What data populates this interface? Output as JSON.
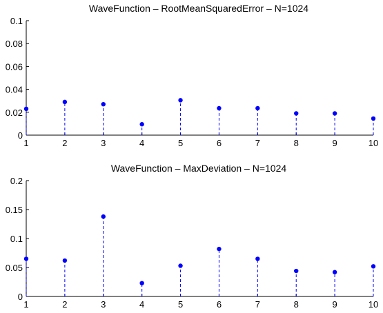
{
  "chart_data": [
    {
      "type": "scatter",
      "title": "WaveFunction – RootMeanSquaredError – N=1024",
      "xlabel": "",
      "ylabel": "",
      "xlim": [
        1,
        10
      ],
      "ylim": [
        0,
        0.1
      ],
      "x_ticks": [
        "1",
        "2",
        "3",
        "4",
        "5",
        "6",
        "7",
        "8",
        "9",
        "10"
      ],
      "y_ticks": [
        "0",
        "0.02",
        "0.04",
        "0.06",
        "0.08",
        "0.1"
      ],
      "x": [
        1,
        2,
        3,
        4,
        5,
        6,
        7,
        8,
        9,
        10
      ],
      "values": [
        0.023,
        0.029,
        0.027,
        0.0095,
        0.0305,
        0.0235,
        0.0235,
        0.019,
        0.019,
        0.0145
      ],
      "stems_dashed": true,
      "grid": false,
      "color": "#0000ff"
    },
    {
      "type": "scatter",
      "title": "WaveFunction – MaxDeviation – N=1024",
      "xlabel": "",
      "ylabel": "",
      "xlim": [
        1,
        10
      ],
      "ylim": [
        0,
        0.2
      ],
      "x_ticks": [
        "1",
        "2",
        "3",
        "4",
        "5",
        "6",
        "7",
        "8",
        "9",
        "10"
      ],
      "y_ticks": [
        "0",
        "0.05",
        "0.1",
        "0.15",
        "0.2"
      ],
      "x": [
        1,
        2,
        3,
        4,
        5,
        6,
        7,
        8,
        9,
        10
      ],
      "values": [
        0.065,
        0.062,
        0.138,
        0.023,
        0.053,
        0.082,
        0.065,
        0.044,
        0.042,
        0.052
      ],
      "stems_dashed": true,
      "grid": false,
      "color": "#0000ff"
    }
  ]
}
